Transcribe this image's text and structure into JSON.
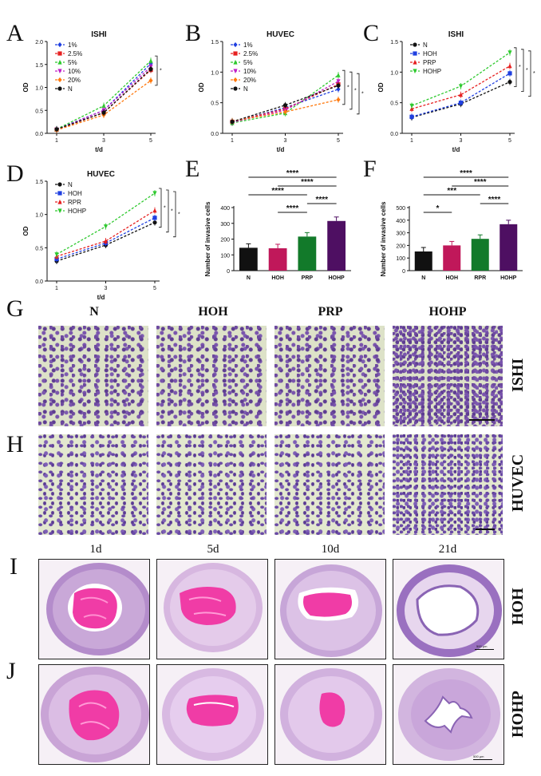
{
  "panels": {
    "A": {
      "letter": "A",
      "title": "ISHI",
      "xlabel": "t/d",
      "ylabel": "OD",
      "xticks": [
        "1",
        "3",
        "5"
      ],
      "yticks": [
        "0.0",
        "0.5",
        "1.0",
        "1.5",
        "2.0"
      ],
      "series": [
        {
          "name": "1%",
          "color": "#1f3fe0",
          "marker": "diamond",
          "values": [
            0.09,
            0.5,
            1.52
          ]
        },
        {
          "name": "2.5%",
          "color": "#e62020",
          "marker": "square",
          "values": [
            0.08,
            0.45,
            1.38
          ]
        },
        {
          "name": "5%",
          "color": "#2fc92f",
          "marker": "triangle",
          "values": [
            0.09,
            0.6,
            1.58
          ]
        },
        {
          "name": "10%",
          "color": "#c020c8",
          "marker": "tri-down",
          "values": [
            0.08,
            0.5,
            1.45
          ]
        },
        {
          "name": "20%",
          "color": "#ff7a10",
          "marker": "diamond",
          "values": [
            0.07,
            0.4,
            1.15
          ]
        },
        {
          "name": "N",
          "color": "#111111",
          "marker": "circle",
          "values": [
            0.09,
            0.45,
            1.4
          ]
        }
      ],
      "sig": [
        "*"
      ]
    },
    "B": {
      "letter": "B",
      "title": "HUVEC",
      "xlabel": "t/d",
      "ylabel": "OD",
      "xticks": [
        "1",
        "3",
        "5"
      ],
      "yticks": [
        "0.0",
        "0.5",
        "1.0",
        "1.5"
      ],
      "series": [
        {
          "name": "1%",
          "color": "#1f3fe0",
          "marker": "diamond",
          "values": [
            0.18,
            0.42,
            0.72
          ]
        },
        {
          "name": "2.5%",
          "color": "#e62020",
          "marker": "square",
          "values": [
            0.19,
            0.4,
            0.8
          ]
        },
        {
          "name": "5%",
          "color": "#2fc92f",
          "marker": "triangle",
          "values": [
            0.17,
            0.33,
            0.95
          ]
        },
        {
          "name": "10%",
          "color": "#c020c8",
          "marker": "tri-down",
          "values": [
            0.18,
            0.38,
            0.85
          ]
        },
        {
          "name": "20%",
          "color": "#ff7a10",
          "marker": "diamond",
          "values": [
            0.2,
            0.35,
            0.55
          ]
        },
        {
          "name": "N",
          "color": "#111111",
          "marker": "circle",
          "values": [
            0.19,
            0.46,
            0.78
          ]
        }
      ],
      "sig": [
        "*",
        "*",
        "*"
      ]
    },
    "C": {
      "letter": "C",
      "title": "ISHI",
      "xlabel": "t/d",
      "ylabel": "OD",
      "xticks": [
        "1",
        "3",
        "5"
      ],
      "yticks": [
        "0.0",
        "0.5",
        "1.0",
        "1.5"
      ],
      "series": [
        {
          "name": "N",
          "color": "#111111",
          "marker": "circle",
          "values": [
            0.26,
            0.48,
            0.84
          ]
        },
        {
          "name": "HOH",
          "color": "#1f3fe0",
          "marker": "square",
          "values": [
            0.27,
            0.5,
            0.98
          ]
        },
        {
          "name": "PRP",
          "color": "#e62020",
          "marker": "triangle",
          "values": [
            0.4,
            0.63,
            1.1
          ]
        },
        {
          "name": "HOHP",
          "color": "#2fc92f",
          "marker": "tri-down",
          "values": [
            0.45,
            0.77,
            1.32
          ]
        }
      ],
      "sig": [
        "*",
        "*",
        "*"
      ]
    },
    "D": {
      "letter": "D",
      "title": "HUVEC",
      "xlabel": "t/d",
      "ylabel": "OD",
      "xticks": [
        "1",
        "3",
        "5"
      ],
      "yticks": [
        "0.0",
        "0.5",
        "1.0",
        "1.5"
      ],
      "series": [
        {
          "name": "N",
          "color": "#111111",
          "marker": "circle",
          "values": [
            0.3,
            0.54,
            0.88
          ]
        },
        {
          "name": "HOH",
          "color": "#1f3fe0",
          "marker": "square",
          "values": [
            0.33,
            0.57,
            0.95
          ]
        },
        {
          "name": "RPR",
          "color": "#e62020",
          "marker": "triangle",
          "values": [
            0.37,
            0.6,
            1.06
          ]
        },
        {
          "name": "HOHP",
          "color": "#2fc92f",
          "marker": "tri-down",
          "values": [
            0.4,
            0.82,
            1.32
          ]
        }
      ],
      "sig": [
        "*",
        "*",
        "*"
      ]
    },
    "E": {
      "letter": "E",
      "ylabel": "Number of invasive cells",
      "categories": [
        "N",
        "HOH",
        "PRP",
        "HOHP"
      ],
      "yticks": [
        "0",
        "100",
        "200",
        "300",
        "400"
      ],
      "values": [
        145,
        142,
        216,
        315
      ],
      "colors": [
        "#111111",
        "#c0185a",
        "#127a2a",
        "#4e0f62"
      ],
      "sig": [
        {
          "label": "****",
          "from": 0,
          "to": 3
        },
        {
          "label": "****",
          "from": 1,
          "to": 3
        },
        {
          "label": "****",
          "from": 0,
          "to": 2
        },
        {
          "label": "****",
          "from": 2,
          "to": 3
        },
        {
          "label": "****",
          "from": 1,
          "to": 2
        }
      ]
    },
    "F": {
      "letter": "F",
      "ylabel": "Number of invasive cells",
      "categories": [
        "N",
        "HOH",
        "RPR",
        "HOHP"
      ],
      "yticks": [
        "0",
        "100",
        "200",
        "300",
        "400",
        "500"
      ],
      "values": [
        152,
        200,
        252,
        368
      ],
      "colors": [
        "#111111",
        "#c0185a",
        "#127a2a",
        "#4e0f62"
      ],
      "sig": [
        {
          "label": "****",
          "from": 0,
          "to": 3
        },
        {
          "label": "****",
          "from": 1,
          "to": 3
        },
        {
          "label": "***",
          "from": 0,
          "to": 2
        },
        {
          "label": "****",
          "from": 2,
          "to": 3
        },
        {
          "label": "*",
          "from": 0,
          "to": 1
        }
      ]
    },
    "G": {
      "letter": "G",
      "row_label": "ISHI",
      "columns": [
        "N",
        "HOH",
        "PRP",
        "HOHP"
      ]
    },
    "H": {
      "letter": "H",
      "row_label": "HUVEC"
    },
    "I": {
      "letter": "I",
      "row_label": "HOH",
      "columns": [
        "1d",
        "5d",
        "10d",
        "21d"
      ],
      "scale": "500 µm"
    },
    "J": {
      "letter": "J",
      "row_label": "HOHP",
      "scale": "500 µm"
    }
  },
  "colors": {
    "he_tissue": "#a878c4",
    "he_fibrin": "#f03ca6",
    "he_bg": "#fbf7fb",
    "transwell_bg": "#dde2c8",
    "crystal_violet": "#6a4aa6"
  }
}
